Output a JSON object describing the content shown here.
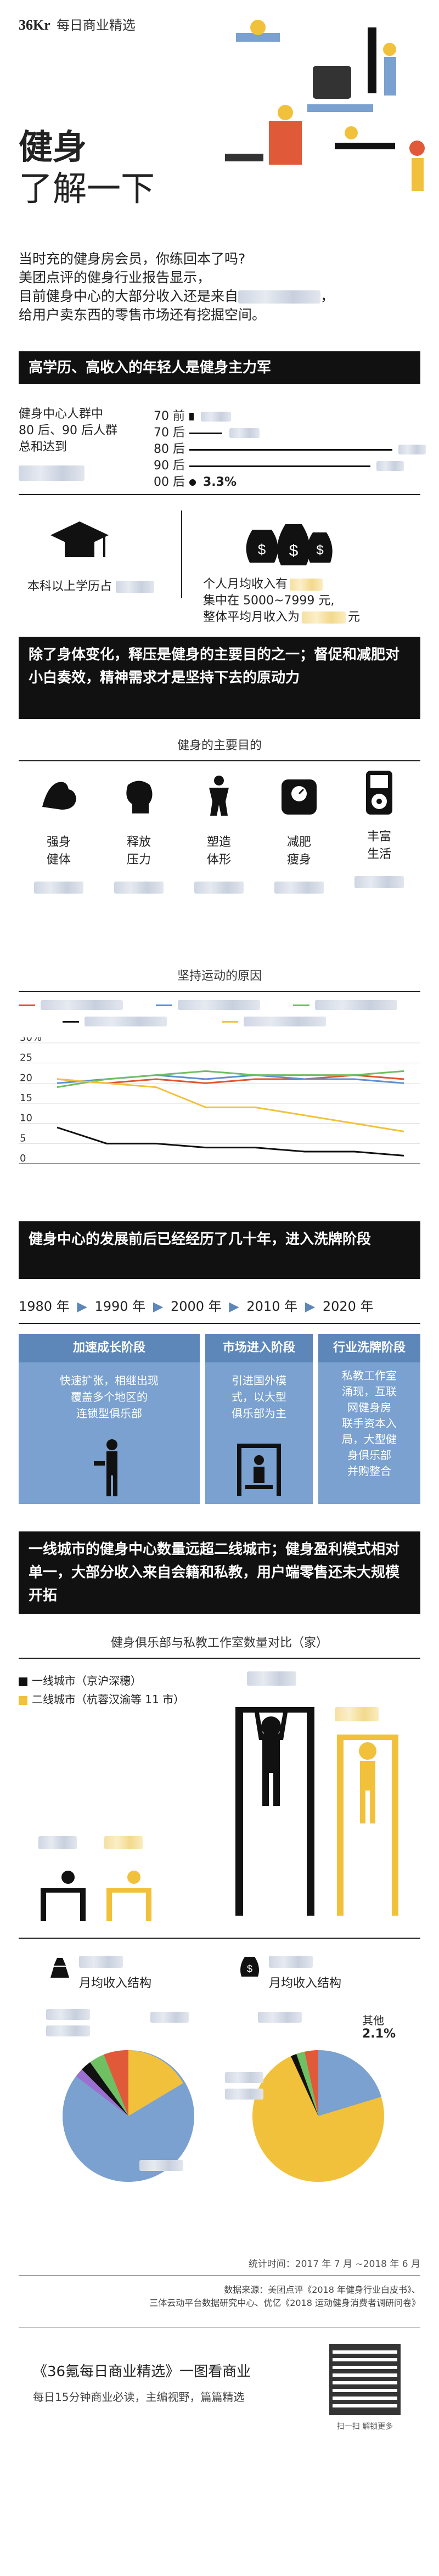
{
  "brand": {
    "logo_text": "36Kr",
    "tagline": "每日商业精选"
  },
  "hero": {
    "title_line1": "健身",
    "title_line2": "了解一下"
  },
  "intro": {
    "line1": "当时充的健身房会员，你练回本了吗?",
    "line2": "美团点评的健身行业报告显示，",
    "line3": "目前健身中心的大部分收入还是来自",
    "line4": "给用户卖东西的零售市场还有挖掘空间。"
  },
  "section1": {
    "heading": "高学历、高收入的年轻人是健身主力军",
    "left_text": [
      "健身中心人群中",
      "80 后、90 后人群",
      "总和达到"
    ],
    "age_rows": [
      {
        "label": "70 前",
        "value": 0.12
      },
      {
        "label": "70 后",
        "value": 0.14
      },
      {
        "label": "80 后",
        "value": 0.42
      },
      {
        "label": "90 后",
        "value": 0.4
      },
      {
        "label": "00 后",
        "value": 0.033,
        "value_text": "3.3%"
      }
    ],
    "edu_text": "本科以上学历占",
    "income_text1": "个人月均收入有",
    "income_text2": "集中在 5000~7999 元,",
    "income_text3": "整体平均月收入为",
    "income_unit": "元"
  },
  "section2": {
    "heading": "除了身体变化，释压是健身的主要目的之一；督促和减肥对小白奏效，精神需求才是坚持下去的原动力",
    "purpose_title": "健身的主要目的",
    "purposes": [
      {
        "label1": "强身",
        "label2": "健体",
        "icon": "muscle-arm-icon"
      },
      {
        "label1": "释放",
        "label2": "压力",
        "icon": "boxing-glove-icon"
      },
      {
        "label1": "塑造",
        "label2": "体形",
        "icon": "body-shape-icon"
      },
      {
        "label1": "减肥",
        "label2": "瘦身",
        "icon": "scale-icon"
      },
      {
        "label1": "丰富",
        "label2": "生活",
        "icon": "music-player-icon"
      }
    ],
    "persist_title": "坚持运动的原因",
    "chart_data": {
      "type": "line",
      "ylabels": [
        "30%",
        "25",
        "20",
        "15",
        "10",
        "5",
        "0"
      ],
      "ylim": [
        0,
        30
      ],
      "x": [
        0,
        1,
        2,
        3,
        4,
        5,
        6,
        7
      ],
      "series": [
        {
          "color": "#e0552f",
          "values": [
            21,
            20,
            21,
            20,
            21,
            21,
            22,
            21
          ]
        },
        {
          "color": "#5e8fcf",
          "values": [
            20,
            21,
            22,
            21,
            22,
            21,
            21,
            20
          ]
        },
        {
          "color": "#6fbf63",
          "values": [
            19,
            21,
            22,
            23,
            22,
            22,
            22,
            23
          ]
        },
        {
          "color": "#f2c13c",
          "values": [
            21,
            20,
            19,
            14,
            14,
            12,
            10,
            8
          ]
        },
        {
          "color": "#111111",
          "values": [
            9,
            5,
            5,
            4,
            4,
            3,
            3,
            2
          ]
        }
      ]
    }
  },
  "section3": {
    "heading": "健身中心的发展前后已经经历了几十年，进入洗牌阶段",
    "timeline": [
      "1980 年",
      "1990 年",
      "2000 年",
      "2010 年",
      "2020 年"
    ],
    "stages": [
      {
        "title": "加速成长阶段",
        "body": [
          "快速扩张，相继出现",
          "覆盖多个地区的",
          "连锁型俱乐部"
        ]
      },
      {
        "title": "市场进入阶段",
        "body": [
          "引进国外模",
          "式，以大型",
          "俱乐部为主"
        ]
      },
      {
        "title": "行业洗牌阶段",
        "body": [
          "私教工作室",
          "涌现，互联",
          "网健身房",
          "联手资本入",
          "局，大型健",
          "身俱乐部",
          "并购整合"
        ]
      }
    ]
  },
  "section4": {
    "heading": "一线城市的健身中心数量远超二线城市；健身盈利模式相对单一，大部分收入来自会籍和私教，用户端零售还未大规模开拓",
    "compare_title": "健身俱乐部与私教工作室数量对比（家）",
    "legend1": "一线城市（京沪深穗）",
    "legend2": "二线城市（杭蓉汉渝等 11 市）",
    "color1": "#111111",
    "color2": "#f2c13c",
    "left_pie_title": "月均收入结构",
    "right_pie_title": "月均收入结构",
    "right_pie_other_label": "其他",
    "right_pie_other_value": "2.1%"
  },
  "footer": {
    "period": "统计时间：2017 年 7 月 ~2018 年 6 月",
    "source1": "数据来源：美团点评《2018 年健身行业白皮书》、",
    "source2": "三体云动平台数据研究中心、优亿《2018 运动健身消费者调研问卷》",
    "promo_title": "《36氪每日商业精选》一图看商业",
    "promo_sub": "每日15分钟商业必读，主编视野，篇篇精选",
    "qr_caption": "扫一扫 解锁更多"
  }
}
